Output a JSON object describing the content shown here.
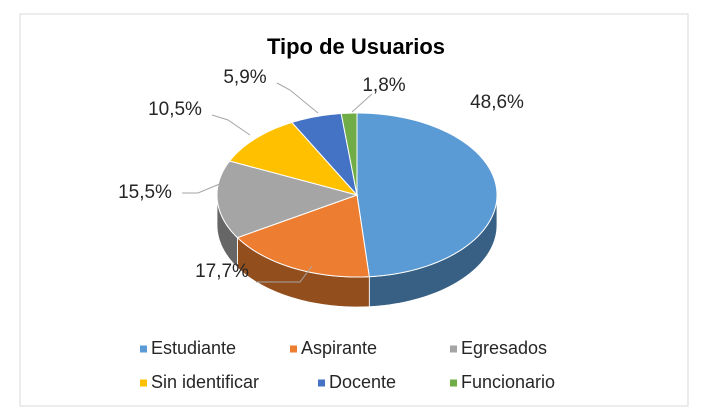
{
  "chart_data": {
    "type": "pie",
    "title": "Tipo de Usuarios",
    "categories": [
      "Estudiante",
      "Aspirante",
      "Egresados",
      "Sin identificar",
      "Docente",
      "Funcionario"
    ],
    "values": [
      48.6,
      17.7,
      15.5,
      10.5,
      5.9,
      1.8
    ],
    "value_labels": [
      "48,6%",
      "17,7%",
      "15,5%",
      "10,5%",
      "5,9%",
      "1,8%"
    ],
    "colors": [
      "#5b9bd5",
      "#ed7d31",
      "#a5a5a5",
      "#ffc000",
      "#4472c4",
      "#70ad47"
    ],
    "legend": "bottom"
  }
}
